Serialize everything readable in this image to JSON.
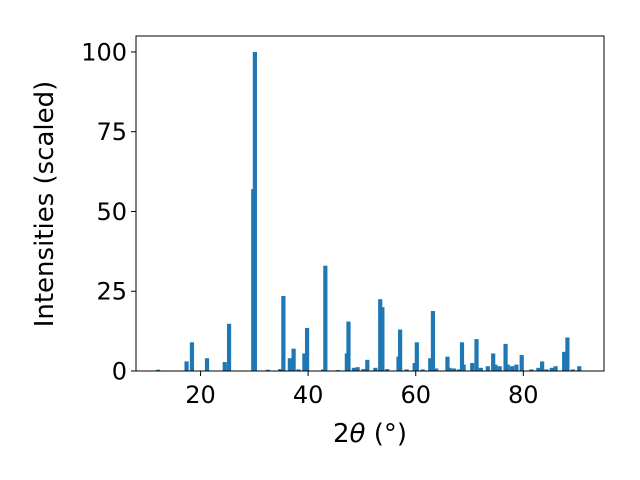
{
  "chart_data": {
    "type": "bar",
    "xlabel_main": "2",
    "xlabel_symbol": "θ",
    "xlabel_unit": " (°)",
    "ylabel": "Intensities (scaled)",
    "xlim": [
      8,
      95
    ],
    "ylim": [
      0,
      105
    ],
    "xticks": [
      20,
      40,
      60,
      80
    ],
    "yticks": [
      0,
      25,
      50,
      75,
      100
    ],
    "bar_color": "#1f77b4",
    "grid": false,
    "x": [
      12.1,
      17.4,
      18.4,
      21.2,
      24.5,
      25.3,
      29.8,
      30.1,
      32.5,
      34.8,
      35.4,
      36.6,
      37.3,
      38.2,
      39.3,
      39.8,
      42.8,
      43.2,
      45.5,
      47.2,
      47.5,
      48.5,
      49.2,
      50.3,
      51.0,
      52.5,
      53.4,
      53.8,
      54.7,
      56.8,
      57.1,
      58.3,
      59.8,
      60.2,
      61.3,
      62.7,
      63.2,
      63.8,
      65.9,
      66.3,
      67.1,
      68.0,
      68.6,
      68.9,
      70.5,
      71.3,
      72.1,
      73.4,
      74.4,
      74.8,
      75.6,
      76.7,
      77.1,
      77.9,
      78.7,
      79.7,
      81.5,
      82.8,
      83.5,
      84.3,
      85.3,
      86.0,
      87.6,
      88.2,
      89.2,
      90.4
    ],
    "values": [
      0.4,
      3,
      9,
      4,
      2.8,
      14.8,
      57,
      100,
      0.4,
      0.6,
      23.5,
      4,
      7,
      0.5,
      5.5,
      13.5,
      0.5,
      33,
      0.3,
      5.5,
      15.5,
      1,
      1.2,
      0.6,
      3.5,
      1,
      22.5,
      20,
      0.6,
      4.5,
      13,
      0.5,
      2.5,
      9,
      0.5,
      4,
      18.8,
      0.8,
      4.5,
      1,
      0.8,
      0.5,
      9,
      2,
      2.5,
      10,
      1,
      1.5,
      5.5,
      2,
      1.5,
      8.5,
      2,
      1.5,
      2,
      5,
      0.5,
      1,
      3,
      0.5,
      1,
      1.5,
      6,
      10.5,
      0.5,
      1.5
    ]
  }
}
